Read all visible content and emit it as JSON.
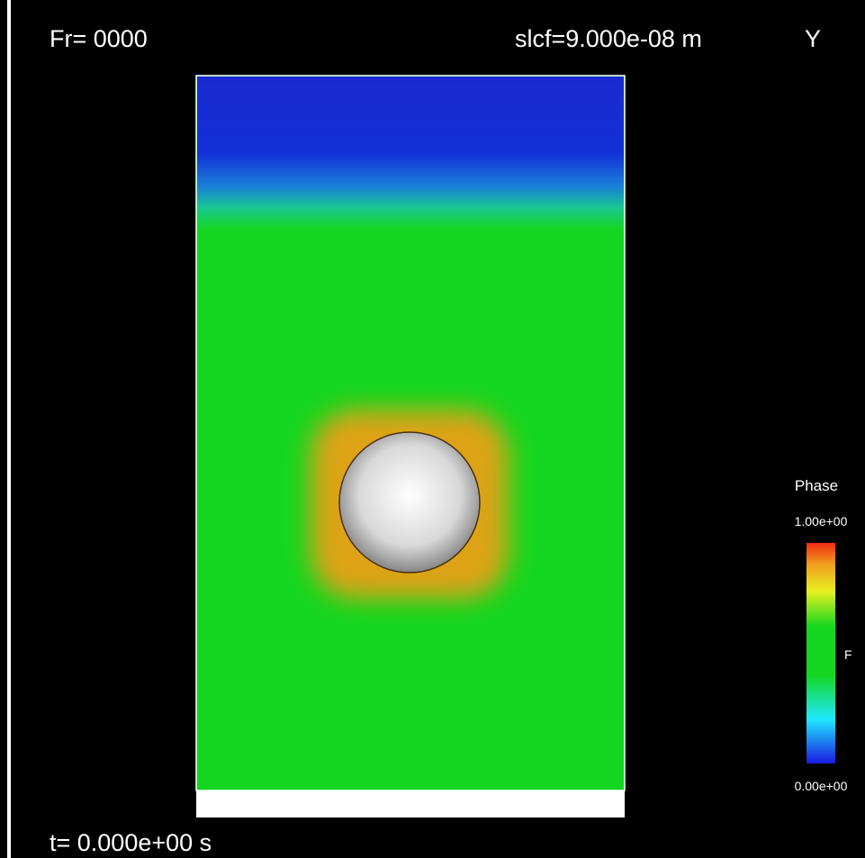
{
  "header": {
    "frame": "Fr= 0000",
    "slice": "slcf=9.000e-08 m",
    "axis": "Y"
  },
  "legend": {
    "title": "Phase",
    "max": "1.00e+00",
    "mid": "F",
    "min": "0.00e+00"
  },
  "footer": {
    "time": "t= 0.000e+00 s"
  }
}
